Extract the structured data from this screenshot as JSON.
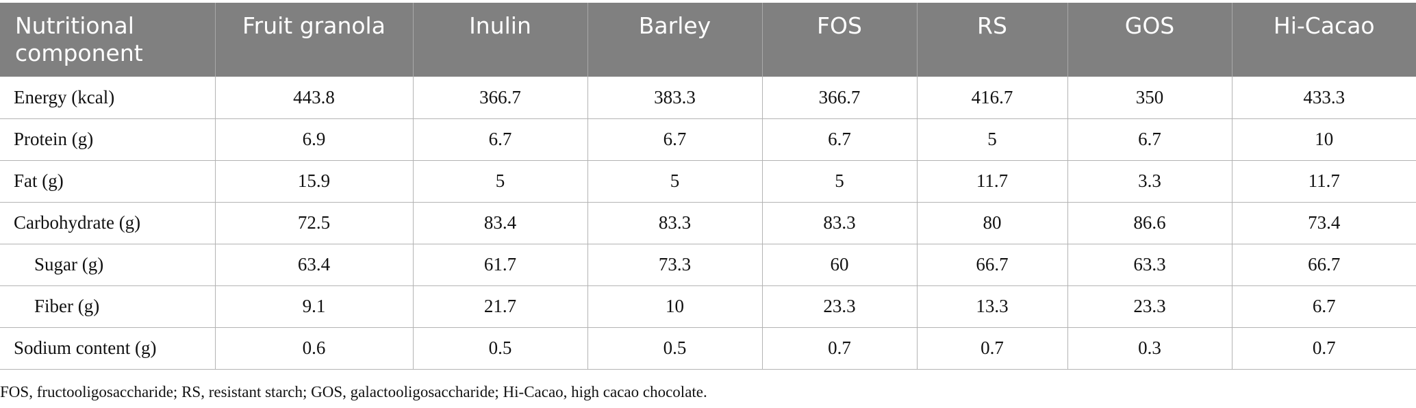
{
  "table": {
    "columns": [
      "Nutritional component",
      "Fruit granola",
      "Inulin",
      "Barley",
      "FOS",
      "RS",
      "GOS",
      "Hi-Cacao"
    ],
    "rows": [
      {
        "label": "Energy (kcal)",
        "indent": false,
        "values": [
          "443.8",
          "366.7",
          "383.3",
          "366.7",
          "416.7",
          "350",
          "433.3"
        ]
      },
      {
        "label": "Protein (g)",
        "indent": false,
        "values": [
          "6.9",
          "6.7",
          "6.7",
          "6.7",
          "5",
          "6.7",
          "10"
        ]
      },
      {
        "label": "Fat (g)",
        "indent": false,
        "values": [
          "15.9",
          "5",
          "5",
          "5",
          "11.7",
          "3.3",
          "11.7"
        ]
      },
      {
        "label": "Carbohydrate (g)",
        "indent": false,
        "values": [
          "72.5",
          "83.4",
          "83.3",
          "83.3",
          "80",
          "86.6",
          "73.4"
        ]
      },
      {
        "label": "Sugar (g)",
        "indent": true,
        "values": [
          "63.4",
          "61.7",
          "73.3",
          "60",
          "66.7",
          "63.3",
          "66.7"
        ]
      },
      {
        "label": "Fiber (g)",
        "indent": true,
        "values": [
          "9.1",
          "21.7",
          "10",
          "23.3",
          "13.3",
          "23.3",
          "6.7"
        ]
      },
      {
        "label": "Sodium content (g)",
        "indent": false,
        "values": [
          "0.6",
          "0.5",
          "0.5",
          "0.7",
          "0.7",
          "0.3",
          "0.7"
        ]
      }
    ]
  },
  "footnote": "FOS, fructooligosaccharide; RS, resistant starch; GOS, galactooligosaccharide; Hi-Cacao, high cacao chocolate."
}
